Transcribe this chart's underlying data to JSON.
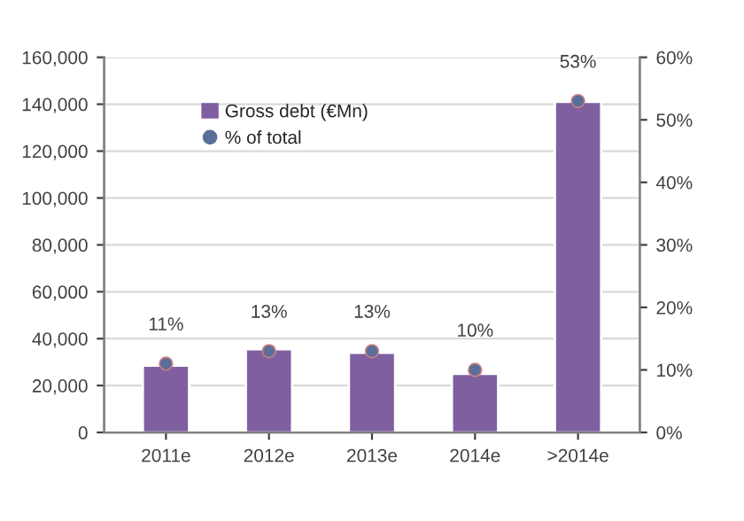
{
  "chart_data": {
    "type": "bar",
    "categories": [
      "2011e",
      "2012e",
      "2013e",
      "2014e",
      ">2014e"
    ],
    "series": [
      {
        "name": "Gross debt (€Mn)",
        "color": "#7f5fa0",
        "values": [
          28500,
          35500,
          34000,
          25000,
          141000
        ]
      },
      {
        "name": "% of total",
        "type": "scatter",
        "axis": "y2",
        "color": "#5a6e9a",
        "values": [
          11,
          13,
          13,
          10,
          53
        ],
        "value_labels": [
          "11%",
          "13%",
          "13%",
          "10%",
          "53%"
        ]
      }
    ],
    "ylim": [
      0,
      160000
    ],
    "yticks": [
      {
        "value": 0,
        "label": "0"
      },
      {
        "value": 20000,
        "label": "20,000"
      },
      {
        "value": 40000,
        "label": "40,000"
      },
      {
        "value": 60000,
        "label": "60,000"
      },
      {
        "value": 80000,
        "label": "80,000"
      },
      {
        "value": 100000,
        "label": "100,000"
      },
      {
        "value": 120000,
        "label": "120,000"
      },
      {
        "value": 140000,
        "label": "140,000"
      },
      {
        "value": 160000,
        "label": "160,000"
      }
    ],
    "y2lim": [
      0,
      60
    ],
    "y2ticks": [
      {
        "value": 0,
        "label": "0%"
      },
      {
        "value": 10,
        "label": "10%"
      },
      {
        "value": 20,
        "label": "20%"
      },
      {
        "value": 30,
        "label": "30%"
      },
      {
        "value": 40,
        "label": "40%"
      },
      {
        "value": 50,
        "label": "50%"
      },
      {
        "value": 60,
        "label": "60%"
      }
    ],
    "grid": "y",
    "legend": "top left",
    "marker": "circle"
  }
}
